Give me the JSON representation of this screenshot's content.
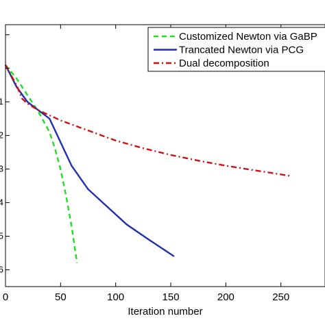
{
  "chart_data": {
    "type": "line",
    "xlabel": "Iteration number",
    "ylabel": "",
    "xlim": [
      0,
      290
    ],
    "x_ticks": [
      0,
      50,
      100,
      150,
      200,
      250
    ],
    "x_tick_labels": [
      "0",
      "50",
      "100",
      "150",
      "200",
      "250"
    ],
    "ylog_range": [
      -6.5,
      1.3
    ],
    "y_ticks": [
      1,
      0,
      -1,
      -2,
      -3,
      -4,
      -5,
      -6
    ],
    "y_tick_labels": [
      "",
      "",
      "1",
      "2",
      "3",
      "4",
      "5",
      "6"
    ],
    "y_scale": "log",
    "grid": false,
    "legend_position": "top-right",
    "series": [
      {
        "name": "Customized Newton via GaBP",
        "color": "#22dd22",
        "dash": "dashed",
        "x": [
          0,
          10,
          20,
          30,
          40,
          45,
          50,
          55,
          60,
          65
        ],
        "log10_y": [
          0.1,
          -0.3,
          -0.8,
          -1.3,
          -1.9,
          -2.4,
          -3.0,
          -3.8,
          -4.7,
          -5.8
        ]
      },
      {
        "name": "Trancated Newton via PCG",
        "color": "#1f2fb0",
        "dash": "solid",
        "x": [
          0,
          10,
          20,
          30,
          40,
          50,
          60,
          75,
          90,
          110,
          130,
          153
        ],
        "log10_y": [
          0.1,
          -0.55,
          -1.0,
          -1.25,
          -1.5,
          -2.2,
          -2.9,
          -3.6,
          -4.05,
          -4.65,
          -5.1,
          -5.6
        ]
      },
      {
        "name": "Dual decomposition",
        "color": "#cc1111",
        "dash": "dashdot",
        "x": [
          0,
          10,
          15,
          20,
          30,
          40,
          50,
          75,
          100,
          125,
          150,
          175,
          200,
          225,
          258
        ],
        "log10_y": [
          0.1,
          -0.5,
          -0.9,
          -1.05,
          -1.25,
          -1.4,
          -1.55,
          -1.85,
          -2.15,
          -2.38,
          -2.58,
          -2.75,
          -2.9,
          -3.03,
          -3.2
        ]
      }
    ]
  }
}
